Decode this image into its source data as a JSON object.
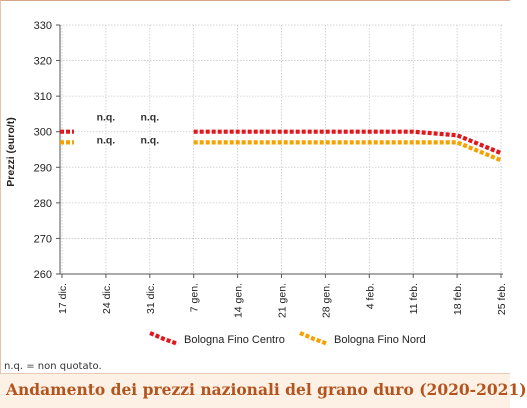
{
  "chart_data": {
    "type": "line",
    "title": "Andamento dei prezzi nazionali del grano duro (2020-2021)",
    "ylabel": "Prezzi (euro/t)",
    "xlabel": "",
    "ylim": [
      260,
      330
    ],
    "yticks": [
      260,
      270,
      280,
      290,
      300,
      310,
      320,
      330
    ],
    "categories": [
      "17 dic.",
      "24 dic.",
      "31 dic.",
      "7 gen.",
      "14 gen.",
      "21 gen.",
      "28 gen.",
      "4 feb.",
      "11 feb.",
      "18 feb.",
      "25 feb."
    ],
    "grid": true,
    "legend_position": "bottom",
    "series": [
      {
        "name": "Bologna Fino Centro",
        "color": "#e1171e",
        "values": [
          300,
          null,
          null,
          300,
          300,
          300,
          300,
          300,
          300,
          299,
          294
        ]
      },
      {
        "name": "Bologna Fino Nord",
        "color": "#f5a100",
        "values": [
          297,
          null,
          null,
          297,
          297,
          297,
          297,
          297,
          297,
          297,
          292
        ]
      }
    ],
    "annotations": [
      {
        "label": "n.q.",
        "category": "24 dic.",
        "value": 304
      },
      {
        "label": "n.q.",
        "category": "31 dic.",
        "value": 304
      },
      {
        "label": "n.q.",
        "category": "24 dic.",
        "value": 297.5
      },
      {
        "label": "n.q.",
        "category": "31 dic.",
        "value": 297.5
      }
    ],
    "footnote": "n.q. = non quotato."
  }
}
